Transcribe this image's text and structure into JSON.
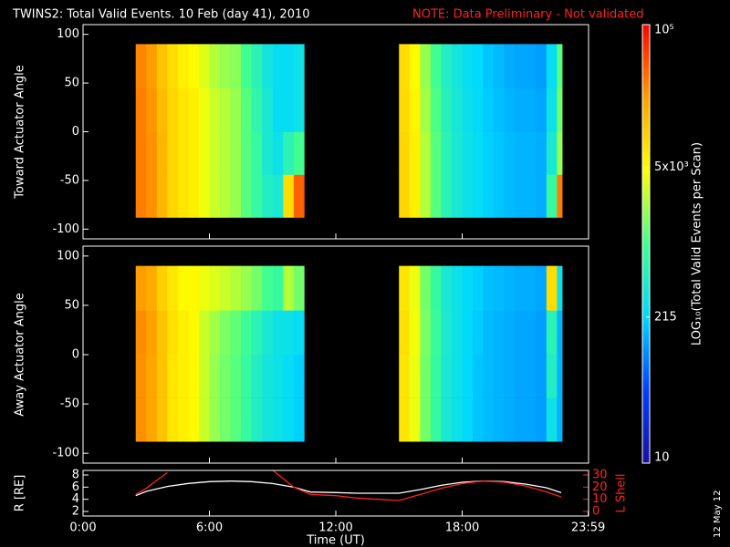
{
  "title": "TWINS2: Total Valid Events. 10 Feb (day  41), 2010",
  "note": "NOTE: Data Preliminary - Not validated",
  "footer_date": "12 May 12",
  "colorbar": {
    "label": "LOG₁₀(Total Valid Events per Scan)",
    "zlim": [
      10,
      100000
    ],
    "log": true,
    "ticks": [
      {
        "value": 100000,
        "label": "10⁵"
      },
      {
        "value": 5000,
        "label": "5x10³"
      },
      215,
      10
    ],
    "colormap": [
      "#1a10a0",
      "#0040ff",
      "#00d8ff",
      "#40ff90",
      "#ffff00",
      "#ffa000",
      "#ff0000"
    ]
  },
  "chart_data": [
    {
      "type": "heatmap",
      "ylabel": "Toward Actuator Angle",
      "xlim": [
        0,
        24
      ],
      "xticks": [
        0,
        6,
        12,
        18,
        24
      ],
      "ylim": [
        -110,
        110
      ],
      "yticks": [
        -100,
        -50,
        0,
        50,
        100
      ],
      "y_bins": [
        -88,
        -44,
        0,
        45,
        90
      ],
      "segments": [
        {
          "x_bins": [
            2.5,
            3,
            3.5,
            4,
            4.5,
            5,
            5.5,
            6,
            6.5,
            7,
            7.5,
            8,
            8.5,
            9,
            9.5,
            10,
            10.5
          ],
          "z": [
            [
              30000,
              25000,
              15000,
              9000,
              7000,
              6000,
              4000,
              3000,
              2500,
              2000,
              1200,
              800,
              500,
              400,
              8000,
              40000
            ],
            [
              30000,
              25000,
              15000,
              9000,
              7000,
              6000,
              4000,
              3000,
              2500,
              2000,
              1200,
              800,
              400,
              300,
              600,
              1000
            ],
            [
              30000,
              24000,
              14000,
              9000,
              7000,
              6000,
              4000,
              3000,
              2500,
              2000,
              1200,
              700,
              400,
              250,
              250,
              300
            ],
            [
              28000,
              22000,
              12000,
              8000,
              6000,
              5000,
              3500,
              2500,
              2000,
              1800,
              1000,
              600,
              350,
              250,
              250,
              300
            ]
          ]
        },
        {
          "x_bins": [
            15,
            15.5,
            16,
            16.5,
            17,
            17.5,
            18,
            18.5,
            19,
            19.5,
            20,
            20.5,
            21,
            21.5,
            22,
            22.5,
            22.75
          ],
          "z": [
            [
              9000,
              6000,
              2500,
              1200,
              600,
              400,
              300,
              250,
              200,
              180,
              160,
              150,
              150,
              140,
              800,
              30000
            ],
            [
              9000,
              6000,
              2500,
              1200,
              600,
              400,
              300,
              250,
              200,
              180,
              160,
              150,
              150,
              140,
              400,
              2000
            ],
            [
              8500,
              5500,
              2200,
              1100,
              550,
              380,
              280,
              230,
              190,
              170,
              150,
              140,
              140,
              130,
              300,
              1500
            ],
            [
              8000,
              5000,
              2000,
              1000,
              500,
              350,
              260,
              220,
              180,
              160,
              140,
              130,
              130,
              120,
              250,
              1200
            ]
          ]
        }
      ]
    },
    {
      "type": "heatmap",
      "ylabel": "Away Actuator Angle",
      "xlim": [
        0,
        24
      ],
      "xticks": [
        0,
        6,
        12,
        18,
        24
      ],
      "ylim": [
        -110,
        110
      ],
      "yticks": [
        -100,
        -50,
        0,
        50,
        100
      ],
      "y_bins": [
        -88,
        -44,
        0,
        45,
        90
      ],
      "segments": [
        {
          "x_bins": [
            2.5,
            3,
            3.5,
            4,
            4.5,
            5,
            5.5,
            6,
            6.5,
            7,
            7.5,
            8,
            8.5,
            9,
            9.5,
            10,
            10.5
          ],
          "z": [
            [
              25000,
              20000,
              12000,
              7000,
              6000,
              5000,
              3000,
              2000,
              1500,
              1200,
              800,
              500,
              350,
              300,
              250,
              200
            ],
            [
              25000,
              20000,
              12000,
              7000,
              6000,
              5000,
              3000,
              2000,
              1500,
              1200,
              800,
              500,
              350,
              300,
              250,
              200
            ],
            [
              26000,
              21000,
              12000,
              7500,
              6000,
              5000,
              3000,
              2200,
              1600,
              1300,
              900,
              600,
              400,
              300,
              300,
              250
            ],
            [
              22000,
              18000,
              10000,
              7000,
              5000,
              5000,
              4000,
              3500,
              3000,
              2500,
              2000,
              1500,
              1000,
              800,
              2500,
              1500
            ]
          ]
        },
        {
          "x_bins": [
            15,
            15.5,
            16,
            16.5,
            17,
            17.5,
            18,
            18.5,
            19,
            19.5,
            20,
            20.5,
            21,
            21.5,
            22,
            22.5,
            22.75
          ],
          "z": [
            [
              7000,
              4000,
              1500,
              800,
              400,
              300,
              220,
              180,
              160,
              150,
              140,
              130,
              130,
              120,
              300,
              150
            ],
            [
              7000,
              4000,
              1500,
              800,
              400,
              300,
              220,
              180,
              160,
              150,
              140,
              130,
              130,
              120,
              500,
              150
            ],
            [
              7500,
              4200,
              1600,
              850,
              420,
              300,
              230,
              190,
              160,
              150,
              140,
              130,
              130,
              120,
              600,
              150
            ],
            [
              7000,
              4000,
              1500,
              800,
              400,
              300,
              230,
              200,
              170,
              160,
              150,
              140,
              140,
              130,
              8000,
              300
            ]
          ]
        }
      ]
    },
    {
      "type": "line",
      "xlabel": "Time (UT)",
      "ylabel": "R [RE]",
      "y2label": "L Shell",
      "xlim": [
        0,
        24
      ],
      "xticks": [
        {
          "value": 0,
          "label": "0:00"
        },
        {
          "value": 6,
          "label": "6:00"
        },
        {
          "value": 12,
          "label": "12:00"
        },
        {
          "value": 18,
          "label": "18:00"
        },
        {
          "value": 23.983,
          "label": "23:59"
        }
      ],
      "ylim": [
        1.25,
        8.75
      ],
      "yticks": [
        2,
        4,
        6,
        8
      ],
      "y2lim": [
        -3.75,
        33.75
      ],
      "y2ticks": [
        0,
        10,
        20,
        30
      ],
      "x": [
        2.5,
        3,
        4,
        5,
        6,
        7,
        8,
        9,
        10,
        10.8,
        12,
        13,
        14,
        15,
        16,
        17,
        18,
        19,
        20,
        21,
        22,
        22.7
      ],
      "series": [
        {
          "name": "R",
          "color": "#ffffff",
          "values": [
            4.6,
            5.3,
            6.1,
            6.6,
            6.9,
            7.0,
            6.9,
            6.6,
            6.0,
            5.2,
            5.1,
            5.0,
            5.0,
            5.0,
            5.6,
            6.3,
            6.8,
            7.0,
            6.9,
            6.5,
            5.9,
            5.1
          ]
        },
        {
          "name": "L",
          "color": "#ff2020",
          "axis": "y2",
          "values": [
            14,
            19,
            32,
            null,
            null,
            null,
            null,
            34,
            20,
            14,
            13,
            11,
            10,
            9,
            14,
            19,
            23,
            25,
            24,
            21,
            16,
            12
          ]
        }
      ]
    }
  ]
}
